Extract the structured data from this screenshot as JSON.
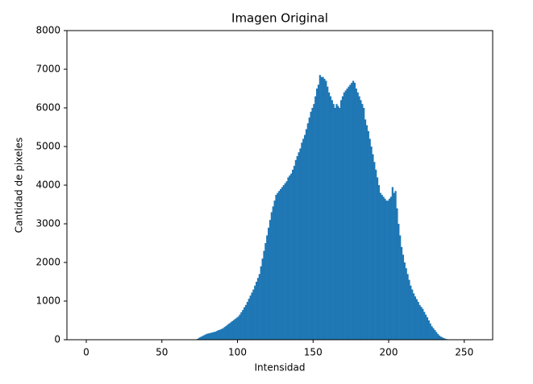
{
  "chart_data": {
    "type": "histogram",
    "title": "Imagen Original",
    "x_label": "Intensidad",
    "y_label": "Cantidad de pixeles",
    "color": "#1f77b4",
    "xlim": [
      -12.8,
      268.8
    ],
    "ylim": [
      0,
      8000
    ],
    "xticks": [
      0,
      50,
      100,
      150,
      200,
      250
    ],
    "yticks": [
      0,
      1000,
      2000,
      3000,
      4000,
      5000,
      6000,
      7000,
      8000
    ],
    "bins": [
      0,
      1,
      2,
      3,
      4,
      5,
      6,
      7,
      8,
      9,
      10,
      11,
      12,
      13,
      14,
      15,
      16,
      17,
      18,
      19,
      20,
      21,
      22,
      23,
      24,
      25,
      26,
      27,
      28,
      29,
      30,
      31,
      32,
      33,
      34,
      35,
      36,
      37,
      38,
      39,
      40,
      41,
      42,
      43,
      44,
      45,
      46,
      47,
      48,
      49,
      50,
      51,
      52,
      53,
      54,
      55,
      56,
      57,
      58,
      59,
      60,
      61,
      62,
      63,
      64,
      65,
      66,
      67,
      68,
      69,
      70,
      71,
      72,
      73,
      74,
      75,
      76,
      77,
      78,
      79,
      80,
      81,
      82,
      83,
      84,
      85,
      86,
      87,
      88,
      89,
      90,
      91,
      92,
      93,
      94,
      95,
      96,
      97,
      98,
      99,
      100,
      101,
      102,
      103,
      104,
      105,
      106,
      107,
      108,
      109,
      110,
      111,
      112,
      113,
      114,
      115,
      116,
      117,
      118,
      119,
      120,
      121,
      122,
      123,
      124,
      125,
      126,
      127,
      128,
      129,
      130,
      131,
      132,
      133,
      134,
      135,
      136,
      137,
      138,
      139,
      140,
      141,
      142,
      143,
      144,
      145,
      146,
      147,
      148,
      149,
      150,
      151,
      152,
      153,
      154,
      155,
      156,
      157,
      158,
      159,
      160,
      161,
      162,
      163,
      164,
      165,
      166,
      167,
      168,
      169,
      170,
      171,
      172,
      173,
      174,
      175,
      176,
      177,
      178,
      179,
      180,
      181,
      182,
      183,
      184,
      185,
      186,
      187,
      188,
      189,
      190,
      191,
      192,
      193,
      194,
      195,
      196,
      197,
      198,
      199,
      200,
      201,
      202,
      203,
      204,
      205,
      206,
      207,
      208,
      209,
      210,
      211,
      212,
      213,
      214,
      215,
      216,
      217,
      218,
      219,
      220,
      221,
      222,
      223,
      224,
      225,
      226,
      227,
      228,
      229,
      230,
      231,
      232,
      233,
      234,
      235,
      236,
      237,
      238,
      239,
      240,
      241,
      242,
      243,
      244,
      245,
      246,
      247,
      248,
      249,
      250,
      251,
      252,
      253,
      254,
      255,
      256
    ],
    "values": [
      0,
      0,
      0,
      0,
      0,
      0,
      0,
      0,
      0,
      0,
      0,
      0,
      0,
      0,
      0,
      0,
      0,
      0,
      0,
      0,
      0,
      0,
      0,
      0,
      0,
      0,
      0,
      0,
      0,
      0,
      0,
      0,
      0,
      0,
      0,
      0,
      0,
      0,
      0,
      0,
      0,
      0,
      0,
      0,
      0,
      0,
      0,
      0,
      0,
      0,
      0,
      0,
      0,
      0,
      0,
      0,
      0,
      0,
      0,
      0,
      0,
      0,
      0,
      0,
      0,
      0,
      0,
      0,
      0,
      0,
      0,
      0,
      0,
      20,
      50,
      70,
      90,
      110,
      130,
      150,
      160,
      170,
      180,
      190,
      200,
      210,
      230,
      250,
      260,
      280,
      300,
      330,
      360,
      390,
      420,
      450,
      480,
      510,
      540,
      570,
      600,
      650,
      710,
      770,
      840,
      900,
      980,
      1060,
      1140,
      1220,
      1300,
      1400,
      1500,
      1600,
      1700,
      1900,
      2100,
      2300,
      2500,
      2700,
      2900,
      3100,
      3300,
      3450,
      3600,
      3750,
      3800,
      3850,
      3900,
      3950,
      4000,
      4050,
      4100,
      4200,
      4250,
      4300,
      4400,
      4500,
      4650,
      4750,
      4850,
      4950,
      5100,
      5200,
      5300,
      5450,
      5600,
      5750,
      5900,
      6000,
      6100,
      6300,
      6500,
      6600,
      6850,
      6800,
      6800,
      6750,
      6700,
      6550,
      6400,
      6300,
      6200,
      6100,
      6000,
      6100,
      6050,
      6000,
      6200,
      6300,
      6400,
      6450,
      6500,
      6550,
      6600,
      6650,
      6700,
      6650,
      6500,
      6400,
      6300,
      6200,
      6100,
      6000,
      5700,
      5550,
      5400,
      5200,
      5000,
      4800,
      4600,
      4400,
      4200,
      4000,
      3800,
      3750,
      3700,
      3650,
      3600,
      3600,
      3650,
      3700,
      3950,
      3800,
      3850,
      3400,
      3000,
      2700,
      2400,
      2200,
      2000,
      1850,
      1700,
      1550,
      1400,
      1300,
      1200,
      1120,
      1050,
      980,
      900,
      850,
      800,
      720,
      650,
      580,
      500,
      420,
      350,
      300,
      250,
      200,
      150,
      110,
      80,
      60,
      40,
      25,
      15,
      10,
      5,
      0,
      0,
      0,
      0,
      0,
      0,
      0,
      0,
      0,
      0,
      0,
      0,
      0,
      0,
      0
    ]
  }
}
